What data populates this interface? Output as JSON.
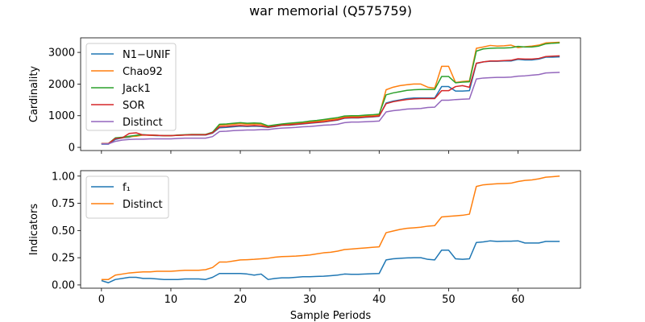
{
  "title": "war memorial (Q575759)",
  "xlabel": "Sample Periods",
  "chart_data": [
    {
      "type": "line",
      "ylabel": "Cardinality",
      "xlim": [
        -3,
        69
      ],
      "ylim": [
        -100,
        3460
      ],
      "xticks": [
        0,
        10,
        20,
        30,
        40,
        50,
        60
      ],
      "yticks": [
        0,
        1000,
        2000,
        3000
      ],
      "legend_position": "top-left",
      "series": [
        {
          "name": "N1−UNIF",
          "color": "#1f77b4",
          "values": [
            100,
            100,
            250,
            300,
            320,
            380,
            400,
            380,
            370,
            370,
            370,
            380,
            390,
            390,
            390,
            390,
            450,
            620,
            630,
            650,
            670,
            660,
            670,
            660,
            630,
            660,
            700,
            700,
            720,
            740,
            760,
            780,
            800,
            830,
            860,
            920,
            930,
            930,
            950,
            960,
            980,
            1400,
            1460,
            1500,
            1540,
            1560,
            1560,
            1560,
            1560,
            1920,
            1920,
            1780,
            1780,
            1790,
            2650,
            2700,
            2720,
            2720,
            2730,
            2730,
            2780,
            2760,
            2760,
            2790,
            2850,
            2850,
            2860
          ]
        },
        {
          "name": "Chao92",
          "color": "#ff7f0e",
          "values": [
            120,
            120,
            280,
            310,
            340,
            350,
            390,
            380,
            380,
            370,
            370,
            380,
            390,
            400,
            400,
            400,
            470,
            700,
            710,
            730,
            750,
            730,
            740,
            730,
            650,
            690,
            720,
            740,
            760,
            780,
            800,
            820,
            850,
            880,
            900,
            960,
            970,
            970,
            990,
            1000,
            1020,
            1820,
            1900,
            1950,
            1980,
            2000,
            2000,
            1900,
            1870,
            2560,
            2560,
            2050,
            2080,
            2100,
            3130,
            3170,
            3220,
            3200,
            3210,
            3230,
            3150,
            3180,
            3200,
            3230,
            3300,
            3310,
            3320
          ]
        },
        {
          "name": "Jack1",
          "color": "#2ca02c",
          "values": [
            120,
            120,
            300,
            320,
            350,
            380,
            400,
            390,
            380,
            370,
            370,
            390,
            400,
            410,
            410,
            410,
            480,
            730,
            740,
            760,
            780,
            760,
            770,
            760,
            680,
            710,
            740,
            760,
            780,
            800,
            830,
            850,
            880,
            910,
            940,
            990,
            1000,
            1000,
            1020,
            1030,
            1050,
            1660,
            1720,
            1760,
            1800,
            1820,
            1830,
            1830,
            1830,
            2240,
            2240,
            2040,
            2060,
            2070,
            3040,
            3110,
            3130,
            3140,
            3140,
            3150,
            3190,
            3170,
            3170,
            3200,
            3270,
            3290,
            3300
          ]
        },
        {
          "name": "SOR",
          "color": "#d62728",
          "values": [
            120,
            120,
            280,
            300,
            440,
            460,
            390,
            390,
            380,
            370,
            370,
            380,
            390,
            400,
            400,
            400,
            460,
            650,
            660,
            680,
            690,
            680,
            690,
            680,
            640,
            670,
            700,
            710,
            730,
            750,
            770,
            790,
            810,
            840,
            870,
            930,
            940,
            940,
            960,
            970,
            990,
            1380,
            1440,
            1480,
            1510,
            1530,
            1540,
            1540,
            1540,
            1790,
            1790,
            1920,
            1950,
            1900,
            2660,
            2700,
            2730,
            2730,
            2740,
            2750,
            2800,
            2790,
            2790,
            2810,
            2870,
            2880,
            2890
          ]
        },
        {
          "name": "Distinct",
          "color": "#9467bd",
          "values": [
            110,
            110,
            190,
            230,
            250,
            260,
            260,
            270,
            270,
            270,
            270,
            280,
            290,
            290,
            290,
            290,
            340,
            500,
            510,
            530,
            540,
            550,
            550,
            560,
            560,
            590,
            610,
            620,
            630,
            650,
            660,
            680,
            700,
            710,
            730,
            780,
            800,
            800,
            810,
            820,
            830,
            1120,
            1160,
            1180,
            1210,
            1220,
            1230,
            1260,
            1270,
            1490,
            1490,
            1510,
            1520,
            1530,
            2160,
            2190,
            2200,
            2210,
            2210,
            2220,
            2250,
            2260,
            2280,
            2300,
            2350,
            2360,
            2370
          ]
        }
      ]
    },
    {
      "type": "line",
      "ylabel": "Indicators",
      "xlim": [
        -3,
        69
      ],
      "ylim": [
        -0.03,
        1.05
      ],
      "xticks": [
        0,
        10,
        20,
        30,
        40,
        50,
        60
      ],
      "yticks": [
        0.0,
        0.25,
        0.5,
        0.75,
        1.0
      ],
      "ytick_labels": [
        "0.00",
        "0.25",
        "0.50",
        "0.75",
        "1.00"
      ],
      "legend_position": "top-left",
      "series": [
        {
          "name": "f₁",
          "color": "#1f77b4",
          "values": [
            0.04,
            0.02,
            0.05,
            0.06,
            0.07,
            0.07,
            0.06,
            0.06,
            0.055,
            0.05,
            0.05,
            0.05,
            0.055,
            0.055,
            0.055,
            0.05,
            0.07,
            0.105,
            0.105,
            0.105,
            0.105,
            0.1,
            0.09,
            0.1,
            0.05,
            0.06,
            0.065,
            0.065,
            0.07,
            0.075,
            0.075,
            0.078,
            0.08,
            0.085,
            0.09,
            0.1,
            0.098,
            0.098,
            0.1,
            0.103,
            0.105,
            0.23,
            0.24,
            0.245,
            0.248,
            0.25,
            0.25,
            0.235,
            0.23,
            0.32,
            0.32,
            0.24,
            0.235,
            0.24,
            0.39,
            0.395,
            0.405,
            0.4,
            0.402,
            0.402,
            0.405,
            0.385,
            0.385,
            0.385,
            0.4,
            0.4,
            0.4
          ]
        },
        {
          "name": "Distinct",
          "color": "#ff7f0e",
          "values": [
            0.05,
            0.05,
            0.09,
            0.1,
            0.11,
            0.115,
            0.12,
            0.12,
            0.125,
            0.125,
            0.125,
            0.13,
            0.135,
            0.135,
            0.135,
            0.14,
            0.16,
            0.21,
            0.21,
            0.22,
            0.23,
            0.232,
            0.235,
            0.24,
            0.245,
            0.255,
            0.26,
            0.262,
            0.265,
            0.27,
            0.275,
            0.285,
            0.295,
            0.3,
            0.31,
            0.325,
            0.33,
            0.335,
            0.34,
            0.345,
            0.35,
            0.48,
            0.495,
            0.51,
            0.52,
            0.525,
            0.53,
            0.54,
            0.545,
            0.625,
            0.63,
            0.635,
            0.64,
            0.65,
            0.905,
            0.92,
            0.925,
            0.93,
            0.932,
            0.935,
            0.95,
            0.96,
            0.965,
            0.975,
            0.99,
            0.995,
            1.0
          ]
        }
      ]
    }
  ]
}
